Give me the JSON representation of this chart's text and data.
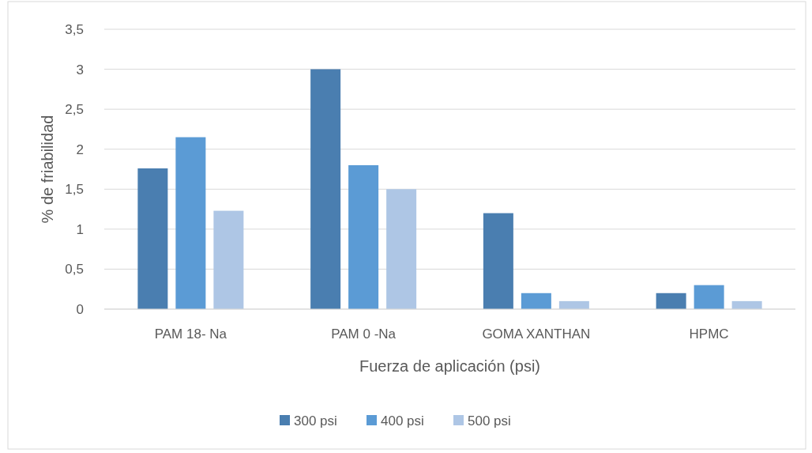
{
  "chart_data": {
    "type": "bar",
    "xlabel": "Fuerza de aplicación (psi)",
    "ylabel": "% de friabilidad",
    "categories": [
      "PAM 18- Na",
      "PAM 0 -Na",
      "GOMA XANTHAN",
      "HPMC"
    ],
    "series": [
      {
        "name": "300 psi",
        "color": "#4a7eb0",
        "values": [
          1.76,
          3.0,
          1.2,
          0.2
        ]
      },
      {
        "name": "400 psi",
        "color": "#5b9bd5",
        "values": [
          2.15,
          1.8,
          0.2,
          0.3
        ]
      },
      {
        "name": "500 psi",
        "color": "#aec6e5",
        "values": [
          1.23,
          1.5,
          0.1,
          0.1
        ]
      }
    ],
    "ylim": [
      0,
      3.5
    ],
    "yticks": [
      {
        "value": 0,
        "label": "0"
      },
      {
        "value": 0.5,
        "label": "0,5"
      },
      {
        "value": 1,
        "label": "1"
      },
      {
        "value": 1.5,
        "label": "1,5"
      },
      {
        "value": 2,
        "label": "2"
      },
      {
        "value": 2.5,
        "label": "2,5"
      },
      {
        "value": 3,
        "label": "3"
      },
      {
        "value": 3.5,
        "label": "3,5"
      }
    ],
    "grid": "y",
    "legend": "bottom"
  }
}
